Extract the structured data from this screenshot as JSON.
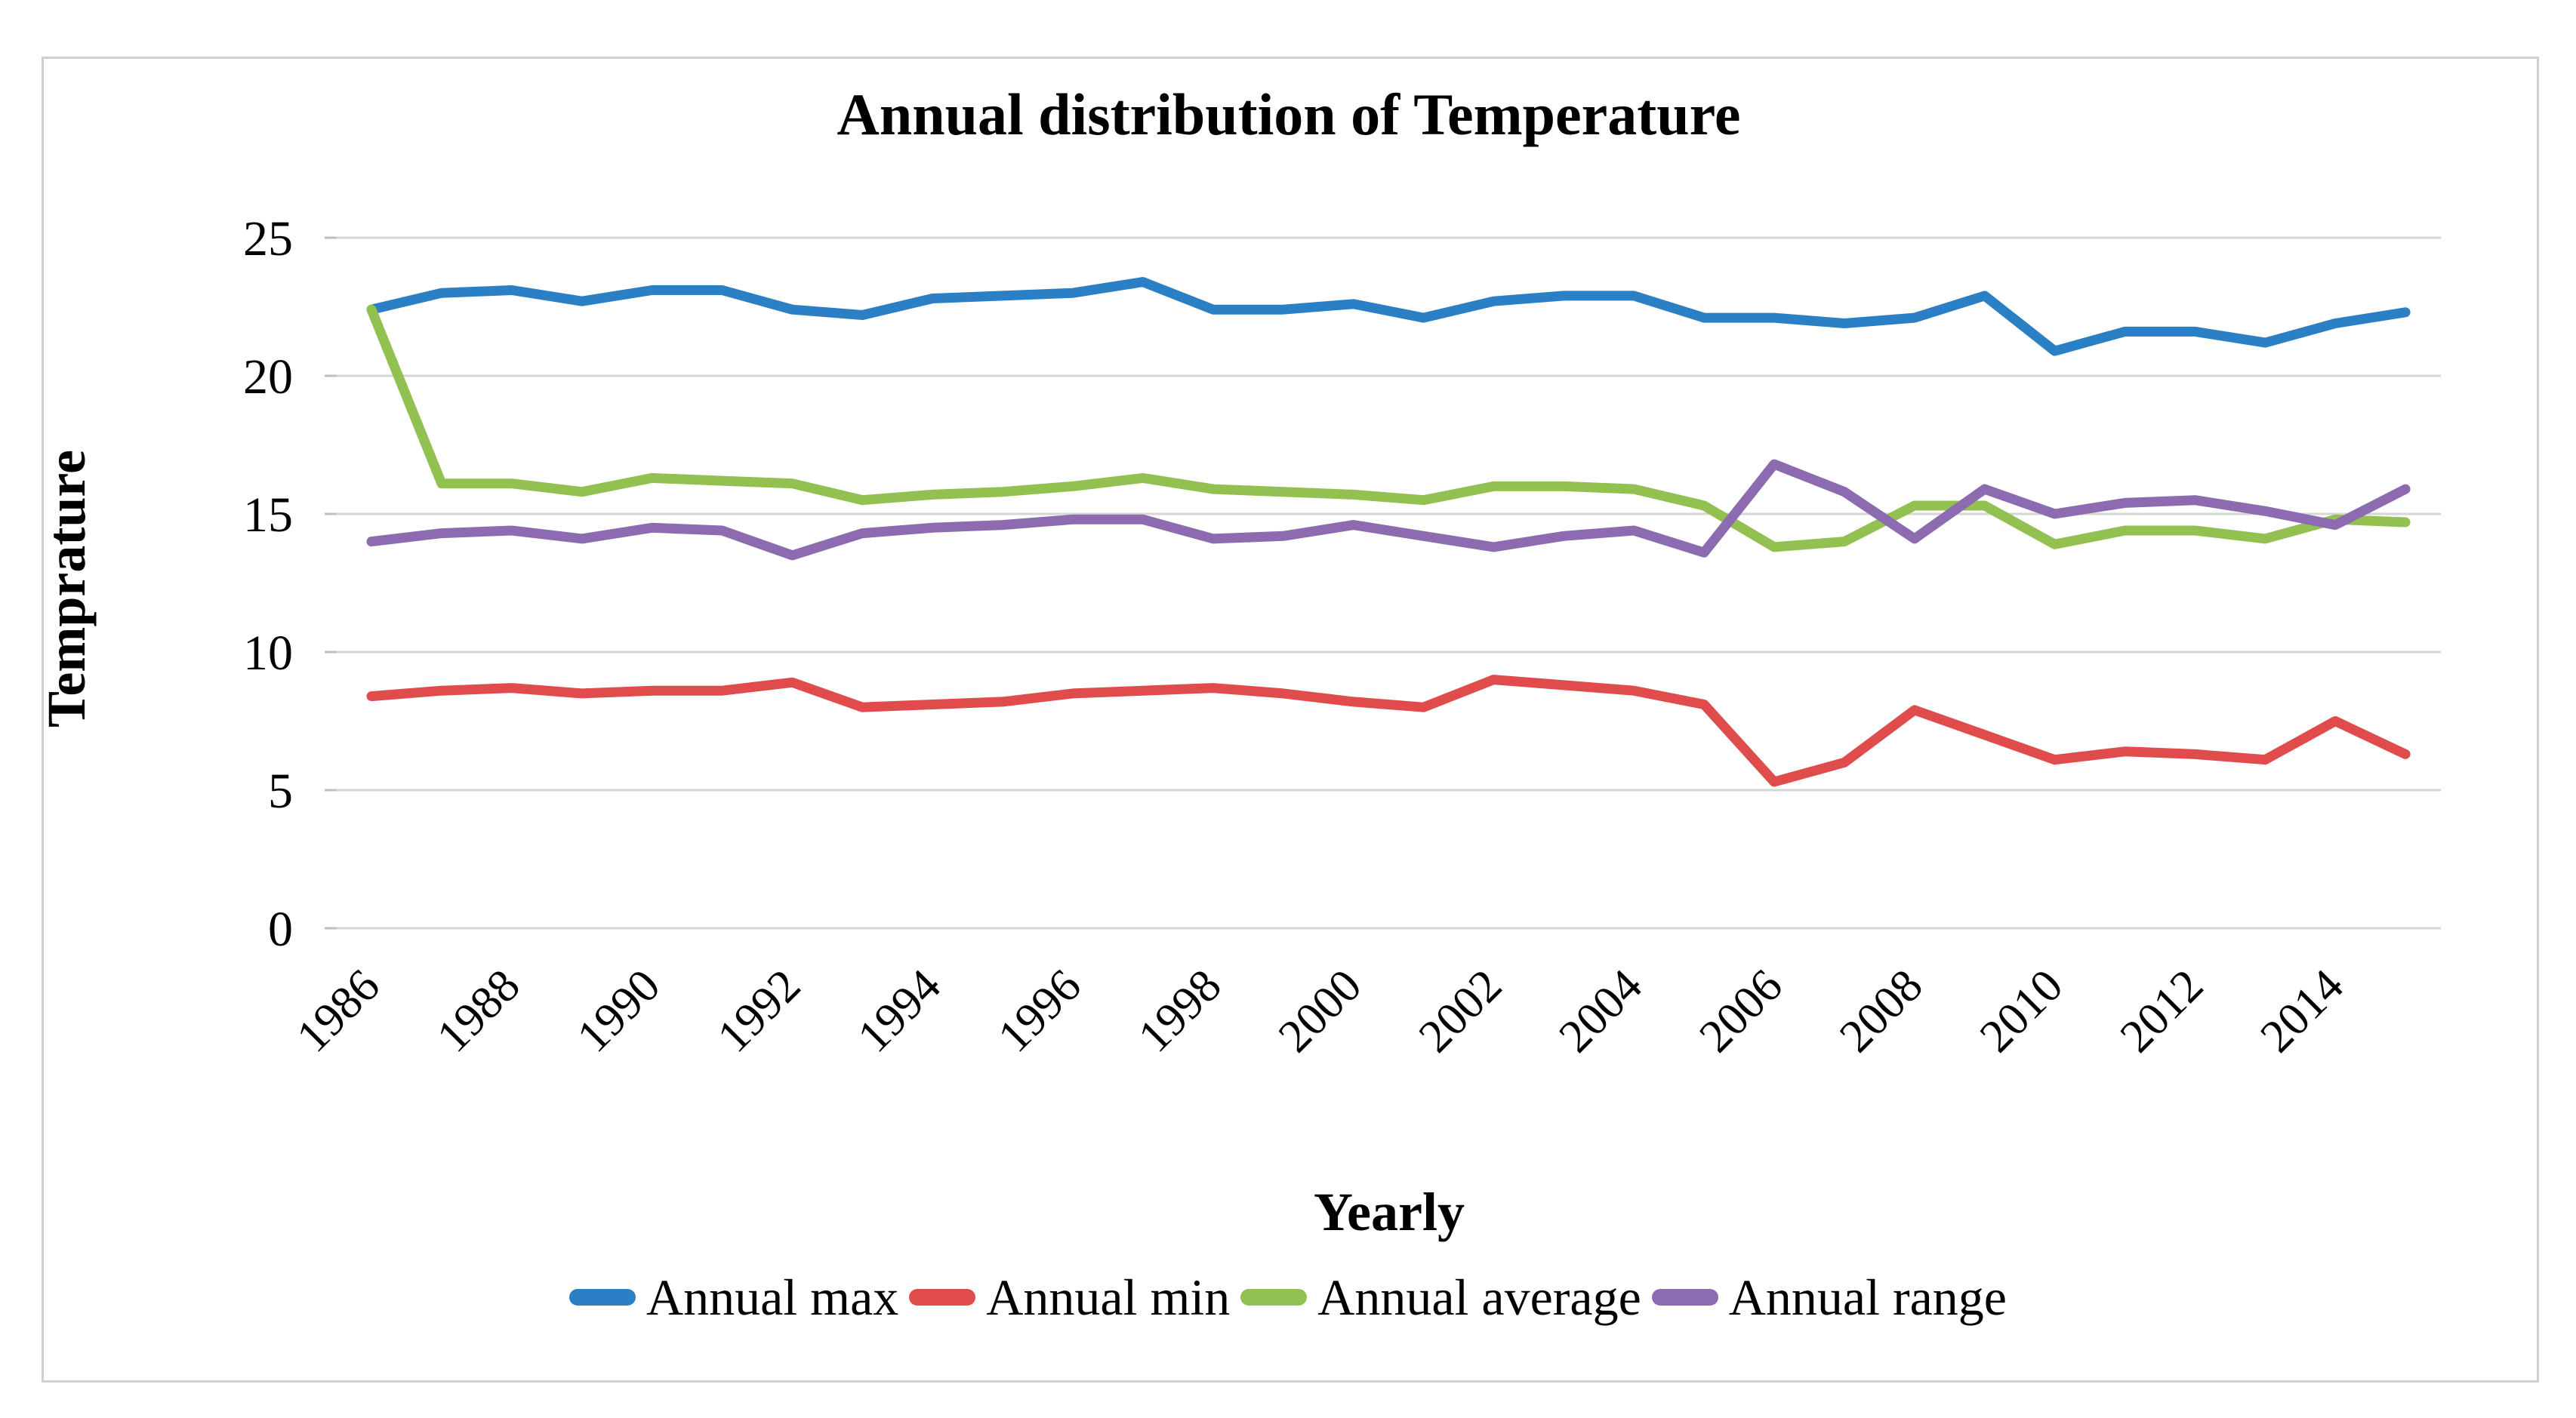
{
  "title": "Annual distribution of Temperature",
  "y_axis": {
    "label": "Temprature",
    "tick_labels": [
      "0",
      "5",
      "10",
      "15",
      "20",
      "25"
    ],
    "min": 0,
    "max": 25
  },
  "x_axis": {
    "label": "Yearly",
    "tick_labels": [
      "1986",
      "1988",
      "1990",
      "1992",
      "1994",
      "1996",
      "1998",
      "2000",
      "2002",
      "2004",
      "2006",
      "2008",
      "2010",
      "2012",
      "2014"
    ]
  },
  "colors": {
    "gridline": "#d6d6d6",
    "tick_stub": "#bfbfbf",
    "frame": "#cfcfcf",
    "text": "#000000"
  },
  "chart_data": {
    "type": "line",
    "title": "Annual distribution of Temperature",
    "xlabel": "Yearly",
    "ylabel": "Temprature",
    "ylim": [
      0,
      25
    ],
    "grid": "horizontal",
    "legend_position": "bottom",
    "x": [
      1986,
      1987,
      1988,
      1989,
      1990,
      1991,
      1992,
      1993,
      1994,
      1995,
      1996,
      1997,
      1998,
      1999,
      2000,
      2001,
      2002,
      2003,
      2004,
      2005,
      2006,
      2007,
      2008,
      2009,
      2010,
      2011,
      2012,
      2013,
      2014,
      2015
    ],
    "series": [
      {
        "name": "Annual max",
        "color": "#2b7fc4",
        "values": [
          22.4,
          23.0,
          23.1,
          22.7,
          23.1,
          23.1,
          22.4,
          22.2,
          22.8,
          22.9,
          23.0,
          23.4,
          22.4,
          22.4,
          22.6,
          22.1,
          22.7,
          22.9,
          22.9,
          22.1,
          22.1,
          21.9,
          22.1,
          22.9,
          20.9,
          21.6,
          21.6,
          21.2,
          21.9,
          22.3
        ]
      },
      {
        "name": "Annual min",
        "color": "#e04b4b",
        "values": [
          8.4,
          8.6,
          8.7,
          8.5,
          8.6,
          8.6,
          8.9,
          8.0,
          8.1,
          8.2,
          8.5,
          8.6,
          8.7,
          8.5,
          8.2,
          8.0,
          9.0,
          8.8,
          8.6,
          8.1,
          5.3,
          6.0,
          7.9,
          7.0,
          6.1,
          6.4,
          6.3,
          6.1,
          7.5,
          6.3
        ]
      },
      {
        "name": "Annual average",
        "color": "#92c051",
        "values": [
          22.4,
          16.1,
          16.1,
          15.8,
          16.3,
          16.2,
          16.1,
          15.5,
          15.7,
          15.8,
          16.0,
          16.3,
          15.9,
          15.8,
          15.7,
          15.5,
          16.0,
          16.0,
          15.9,
          15.3,
          13.8,
          14.0,
          15.3,
          15.3,
          13.9,
          14.4,
          14.4,
          14.1,
          14.8,
          14.7
        ]
      },
      {
        "name": "Annual range",
        "color": "#8c6bb1",
        "values": [
          14.0,
          14.3,
          14.4,
          14.1,
          14.5,
          14.4,
          13.5,
          14.3,
          14.5,
          14.6,
          14.8,
          14.8,
          14.1,
          14.2,
          14.6,
          14.2,
          13.8,
          14.2,
          14.4,
          13.6,
          16.8,
          15.8,
          14.1,
          15.9,
          15.0,
          15.4,
          15.5,
          15.1,
          14.6,
          15.9
        ]
      }
    ]
  }
}
